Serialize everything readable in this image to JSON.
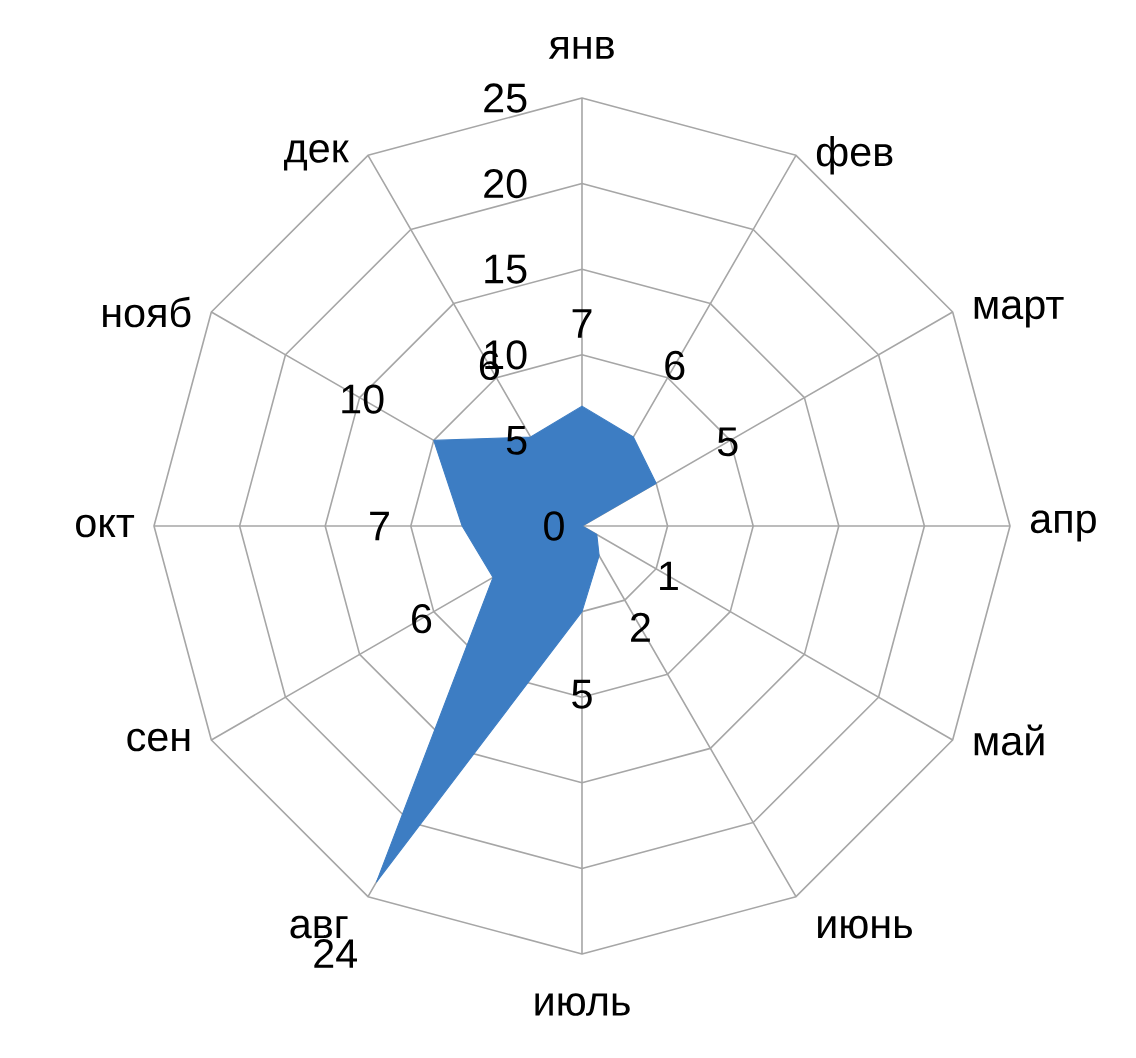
{
  "chart_data": {
    "type": "radar",
    "categories": [
      "янв",
      "фев",
      "март",
      "апр",
      "май",
      "июнь",
      "июль",
      "авг",
      "сен",
      "окт",
      "нояб",
      "дек"
    ],
    "series": [
      {
        "color": "#3d7dc3",
        "values": [
          7,
          6,
          5,
          0,
          1,
          2,
          5,
          24,
          6,
          7,
          10,
          6
        ],
        "value_labels": [
          "7",
          "6",
          "5",
          null,
          "1",
          "2",
          "5",
          "24",
          "6",
          "7",
          "10",
          "6"
        ]
      }
    ],
    "ylim": [
      0,
      25
    ],
    "yticks": [
      0,
      5,
      10,
      15,
      20,
      25
    ],
    "grid": true
  }
}
